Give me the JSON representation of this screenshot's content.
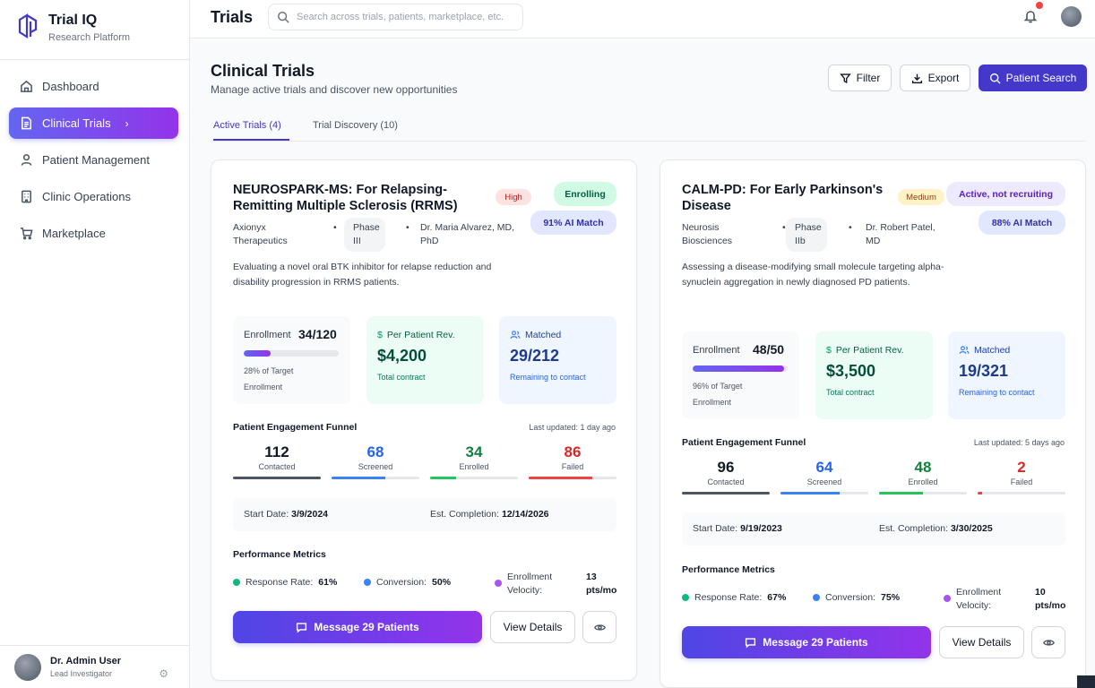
{
  "app": {
    "name": "Trial IQ",
    "subtitle": "Research Platform"
  },
  "sidebar": {
    "items": [
      {
        "label": "Dashboard",
        "icon": "home-icon"
      },
      {
        "label": "Clinical Trials",
        "icon": "document-icon",
        "active": true,
        "chevron": "›"
      },
      {
        "label": "Patient Management",
        "icon": "user-icon"
      },
      {
        "label": "Clinic Operations",
        "icon": "building-icon"
      },
      {
        "label": "Marketplace",
        "icon": "cart-icon"
      }
    ],
    "user": {
      "name": "Dr. Admin User",
      "role": "Lead Investigator",
      "settings_icon": "gear-icon"
    }
  },
  "topbar": {
    "title": "Trials",
    "search_placeholder": "Search across trials, patients, marketplace, etc.",
    "notification_icon": "bell-icon"
  },
  "header": {
    "title": "Clinical Trials",
    "subtitle": "Manage active trials and discover new opportunities",
    "filter_label": "Filter",
    "export_label": "Export",
    "patient_search_label": "Patient Search"
  },
  "tabs": [
    {
      "label": "Active Trials (4)",
      "active": true
    },
    {
      "label": "Trial Discovery (10)",
      "active": false
    }
  ],
  "trials": [
    {
      "title": "NEUROSPARK-MS: For Relapsing-Remitting Multiple Sclerosis (RRMS)",
      "priority": "High",
      "status": "Enrolling",
      "ai_match": "91% AI Match",
      "sponsor": "Axionyx Therapeutics",
      "phase": "Phase III",
      "investigator": "Dr. Maria Alvarez, MD, PhD",
      "description": "Evaluating a novel oral BTK inhibitor for relapse reduction and disability progression in RRMS patients.",
      "enrollment_label": "Enrollment",
      "enrollment_value": "34/120",
      "enrollment_fraction": 0.28,
      "enrollment_note": "28% of Target Enrollment",
      "revenue_label": "Per Patient Rev.",
      "revenue_value": "$4,200",
      "revenue_note": "Total contract",
      "matched_label": "Matched",
      "matched_value": "29/212",
      "matched_note": "Remaining to contact",
      "funnel_title": "Patient Engagement Funnel",
      "funnel_updated": "Last updated: 1 day ago",
      "funnel": [
        {
          "value": "112",
          "label": "Contacted",
          "fill": 1.0,
          "color": "#4b5563"
        },
        {
          "value": "68",
          "label": "Screened",
          "fill": 0.61,
          "color": "#3b82f6"
        },
        {
          "value": "34",
          "label": "Enrolled",
          "fill": 0.3,
          "color": "#22c55e"
        },
        {
          "value": "86",
          "label": "Failed",
          "fill": 0.72,
          "color": "#ef4444"
        }
      ],
      "start_label": "Start Date:",
      "start_date": "3/9/2024",
      "completion_label": "Est. Completion:",
      "completion_date": "12/14/2026",
      "metrics_title": "Performance Metrics",
      "response_label": "Response Rate:",
      "response_value": "61%",
      "conversion_label": "Conversion:",
      "conversion_value": "50%",
      "velocity_label": "Enrollment Velocity:",
      "velocity_value": "13 pts/mo",
      "message_label": "Message 29 Patients",
      "details_label": "View Details"
    },
    {
      "title": "CALM-PD: For Early Parkinson's Disease",
      "priority": "Medium",
      "status": "Active, not recruiting",
      "ai_match": "88% AI Match",
      "sponsor": "Neurosis Biosciences",
      "phase": "Phase IIb",
      "investigator": "Dr. Robert Patel, MD",
      "description": "Assessing a disease-modifying small molecule targeting alpha-synuclein aggregation in newly diagnosed PD patients.",
      "enrollment_label": "Enrollment",
      "enrollment_value": "48/50",
      "enrollment_fraction": 0.96,
      "enrollment_note": "96% of Target Enrollment",
      "revenue_label": "Per Patient Rev.",
      "revenue_value": "$3,500",
      "revenue_note": "Total contract",
      "matched_label": "Matched",
      "matched_value": "19/321",
      "matched_note": "Remaining to contact",
      "funnel_title": "Patient Engagement Funnel",
      "funnel_updated": "Last updated: 5 days ago",
      "funnel": [
        {
          "value": "96",
          "label": "Contacted",
          "fill": 1.0,
          "color": "#4b5563"
        },
        {
          "value": "64",
          "label": "Screened",
          "fill": 0.67,
          "color": "#3b82f6"
        },
        {
          "value": "48",
          "label": "Enrolled",
          "fill": 0.5,
          "color": "#22c55e"
        },
        {
          "value": "2",
          "label": "Failed",
          "fill": 0.05,
          "color": "#ef4444"
        }
      ],
      "start_label": "Start Date:",
      "start_date": "9/19/2023",
      "completion_label": "Est. Completion:",
      "completion_date": "3/30/2025",
      "metrics_title": "Performance Metrics",
      "response_label": "Response Rate:",
      "response_value": "67%",
      "conversion_label": "Conversion:",
      "conversion_value": "75%",
      "velocity_label": "Enrollment Velocity:",
      "velocity_value": "10 pts/mo",
      "message_label": "Message 29 Patients",
      "details_label": "View Details"
    }
  ],
  "colors": {
    "accent": "#4338ca",
    "gradient_start": "#6366f1",
    "gradient_end": "#9333ea",
    "response_dot": "#10b981",
    "conversion_dot": "#3b82f6",
    "velocity_dot": "#a855f7"
  }
}
